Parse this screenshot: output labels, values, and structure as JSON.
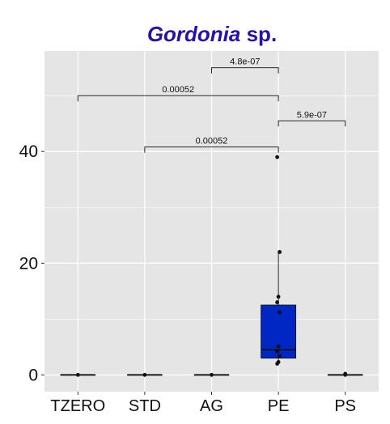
{
  "chart_data": {
    "type": "box",
    "title_italic": "Gordonia",
    "title_rest": " sp.",
    "xlabel": "",
    "ylabel": "",
    "categories": [
      "TZERO",
      "STD",
      "AG",
      "PE",
      "PS"
    ],
    "ylim": [
      -3,
      58
    ],
    "yticks": [
      0,
      20,
      40
    ],
    "grid": true,
    "colors": {
      "panel": "#e5e5e5",
      "grid": "#ffffff",
      "box_fill": "#0027c4",
      "title": "#2a0fa8",
      "ink": "#111111"
    },
    "boxes": [
      {
        "category": "TZERO",
        "min": 0,
        "q1": 0,
        "median": 0,
        "q3": 0,
        "max": 0,
        "points": [
          0
        ]
      },
      {
        "category": "STD",
        "min": 0,
        "q1": 0,
        "median": 0,
        "q3": 0,
        "max": 0,
        "points": [
          0
        ]
      },
      {
        "category": "AG",
        "min": 0,
        "q1": 0,
        "median": 0,
        "q3": 0,
        "max": 0,
        "points": [
          0
        ]
      },
      {
        "category": "PE",
        "min": 2,
        "q1": 3,
        "median": 4.5,
        "q3": 12.5,
        "max": 22,
        "points": [
          2,
          2.3,
          3.4,
          4.2,
          5.1,
          11.2,
          13,
          14,
          22,
          39
        ]
      },
      {
        "category": "PS",
        "min": 0,
        "q1": 0,
        "median": 0,
        "q3": 0,
        "max": 0.3,
        "points": [
          0,
          0.2
        ]
      }
    ],
    "comparisons": [
      {
        "from": "AG",
        "to": "PE",
        "y": 55,
        "label": "4.8e-07"
      },
      {
        "from": "TZERO",
        "to": "PE",
        "y": 50,
        "label": "0.00052"
      },
      {
        "from": "PE",
        "to": "PS",
        "y": 45.5,
        "label": "5.9e-07"
      },
      {
        "from": "STD",
        "to": "PE",
        "y": 40.8,
        "label": "0.00052"
      }
    ]
  }
}
